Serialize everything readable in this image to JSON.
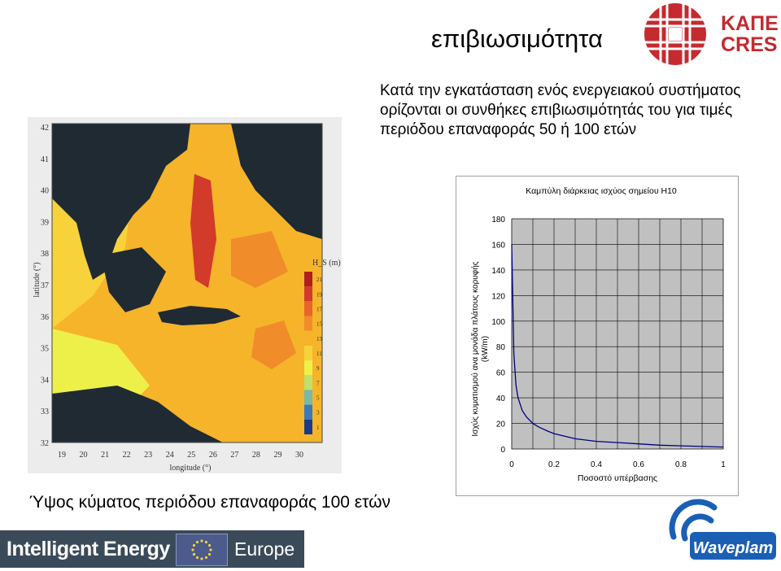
{
  "slide": {
    "title": "επιβιωσιμότητα",
    "bullet_line1": "Κατά την εγκατάσταση ενός ενεργειακού συστήματος",
    "bullet_line2": "ορίζονται οι συνθήκες επιβιωσιμότητάς του για τιμές",
    "bullet_line3": "περιόδου επαναφοράς 50 ή 100 ετών",
    "caption": "Ύψος κύματος περιόδου επαναφοράς 100 ετών"
  },
  "logos": {
    "kape_line1": "ΚΑΠΕ",
    "kape_line2": "CRES",
    "ie_left": "Intelligent Energy",
    "ie_right": "Europe",
    "waveplam": "Waveplam",
    "colors": {
      "kape_red": "#c42a2f",
      "waveplam_blue": "#1a5fb4",
      "ie_bg": "#3b4a59"
    }
  },
  "map": {
    "y_ticks": [
      "42",
      "41",
      "40",
      "39",
      "38",
      "37",
      "36",
      "35",
      "34",
      "33",
      "32"
    ],
    "x_ticks": [
      "19",
      "20",
      "21",
      "22",
      "23",
      "24",
      "25",
      "26",
      "27",
      "28",
      "29",
      "30"
    ],
    "ylabel": "latitude (°)",
    "xlabel": "longitude (°)",
    "legend_title": "H_S (m)",
    "legend_values": [
      "21",
      "19",
      "17",
      "15",
      "13",
      "11",
      "9",
      "7",
      "5",
      "3",
      "1"
    ],
    "legend_colors": [
      "#b01e1e",
      "#d23a2a",
      "#e8652a",
      "#f08c2a",
      "#f5b42a",
      "#f7d23a",
      "#eef04a",
      "#bfe06a",
      "#7ab8a8",
      "#3a7ab8",
      "#1a3a88"
    ],
    "colors": {
      "land": "#1f2a33",
      "low": "#eef04a",
      "mid": "#f5b42a",
      "high": "#d23a2a",
      "background": "#ececec"
    }
  },
  "chart_data": {
    "type": "line",
    "title": "Καμπύλη διάρκειας ισχύος σημείου H10",
    "xlabel": "Ποσοστό υπέρβασης",
    "ylabel_line1": "Ισχύς κυματισμού ανα μονάδα πλάτους κορυφής",
    "ylabel_line2": "(kW/m)",
    "xlim": [
      0,
      1
    ],
    "ylim": [
      0,
      180
    ],
    "x_tick_labels": [
      "0",
      "0.2",
      "0.4",
      "0.6",
      "0.8",
      "1"
    ],
    "y_tick_labels": [
      "0",
      "20",
      "40",
      "60",
      "80",
      "100",
      "120",
      "140",
      "160",
      "180"
    ],
    "grid": true,
    "plot_background": "#c0c0c0",
    "line_color": "#000080",
    "x": [
      0.0,
      0.01,
      0.02,
      0.03,
      0.05,
      0.07,
      0.1,
      0.13,
      0.17,
      0.2,
      0.25,
      0.3,
      0.35,
      0.4,
      0.5,
      0.6,
      0.7,
      0.8,
      0.9,
      1.0
    ],
    "y": [
      160,
      75,
      50,
      40,
      30,
      25,
      20,
      17,
      14,
      12,
      10,
      8,
      7,
      6,
      5,
      4,
      3,
      2.5,
      2,
      1.5
    ]
  }
}
